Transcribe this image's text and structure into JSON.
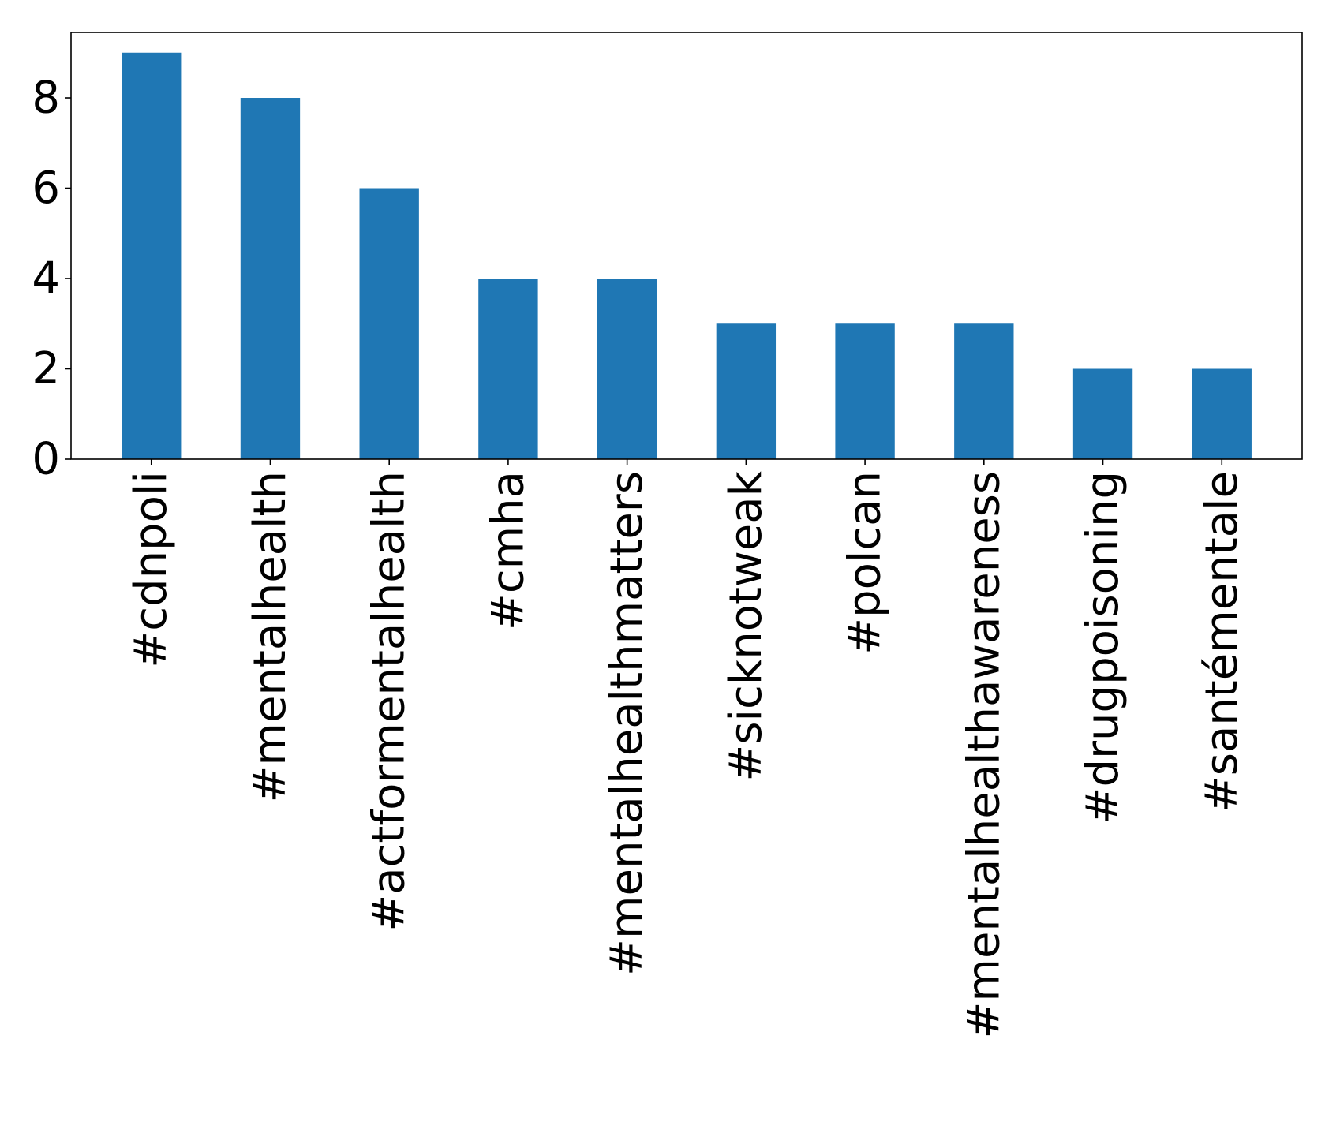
{
  "chart_data": {
    "type": "bar",
    "categories": [
      "#cdnpoli",
      "#mentalhealth",
      "#actformentalhealth",
      "#cmha",
      "#mentalhealthmatters",
      "#sicknotweak",
      "#polcan",
      "#mentalhealthawareness",
      "#drugpoisoning",
      "#santémentale"
    ],
    "values": [
      9,
      8,
      6,
      4,
      4,
      3,
      3,
      3,
      2,
      2
    ],
    "y_ticks": [
      "0",
      "2",
      "4",
      "6",
      "8"
    ],
    "ylim": [
      0,
      9.45
    ],
    "grid": false,
    "legend": "none",
    "bar_color": "#1f77b4"
  }
}
